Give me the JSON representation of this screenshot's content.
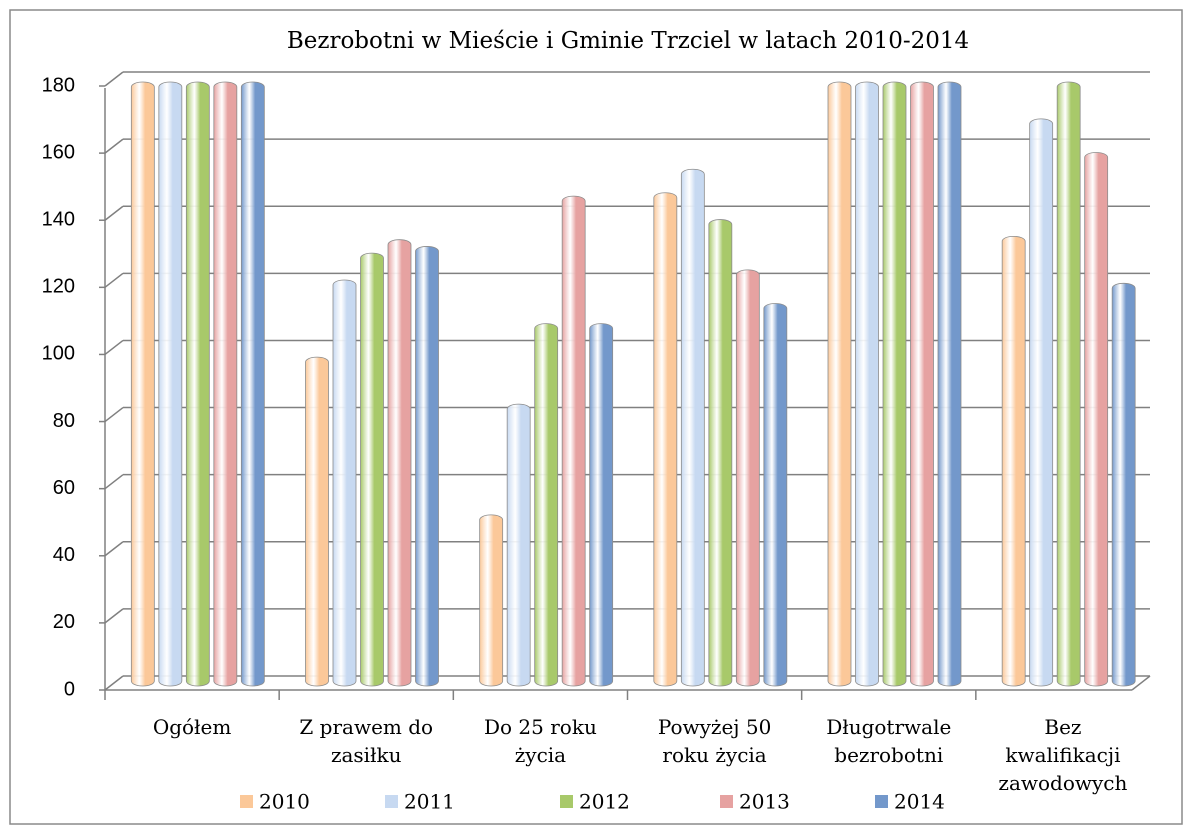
{
  "chart_data": {
    "type": "bar",
    "title": "Bezrobotni w Mieście i Gminie Trzciel w latach 2010-2014",
    "categories": [
      [
        "Ogółem"
      ],
      [
        "Z prawem do",
        "zasiłku"
      ],
      [
        "Do 25 roku",
        "życia"
      ],
      [
        "Powyżej 50",
        "roku życia"
      ],
      [
        "Długotrwale",
        "bezrobotni"
      ],
      [
        "Bez",
        "kwalifikacji",
        "zawodowych"
      ]
    ],
    "series": [
      {
        "name": "2010",
        "color": "#fbc899",
        "values": [
          180,
          98,
          51,
          147,
          180,
          134
        ]
      },
      {
        "name": "2011",
        "color": "#c7d9f1",
        "values": [
          180,
          121,
          84,
          154,
          180,
          169
        ]
      },
      {
        "name": "2012",
        "color": "#a8c96a",
        "values": [
          180,
          129,
          108,
          139,
          180,
          180
        ]
      },
      {
        "name": "2013",
        "color": "#e6a2a1",
        "values": [
          180,
          133,
          146,
          124,
          180,
          159
        ]
      },
      {
        "name": "2014",
        "color": "#7398cb",
        "values": [
          180,
          131,
          108,
          114,
          180,
          120
        ]
      }
    ],
    "ylim": [
      0,
      180
    ],
    "yticks": [
      0,
      20,
      40,
      60,
      80,
      100,
      120,
      140,
      160,
      180
    ],
    "grid": true,
    "legend": "bottom"
  }
}
